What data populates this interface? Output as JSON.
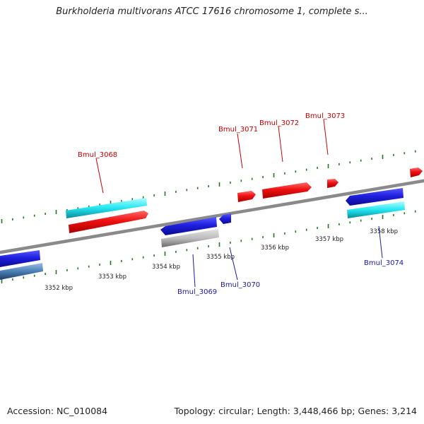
{
  "title": "Burkholderia multivorans ATCC 17616 chromosome 1, complete s...",
  "accession": "Accession: NC_010084",
  "summary": "Topology: circular; Length: 3,448,466 bp; Genes: 3,214",
  "colors": {
    "backbone": "#8a8a8a",
    "tick": "#1f7a1f",
    "forward_gene": "#ee1111",
    "reverse_gene": "#1f1fe0",
    "forward_label": "#cc0000",
    "reverse_label": "#1a1aa0",
    "cyan_track": "#22e6f0",
    "gray_track": "#b8b8b8",
    "steel_track": "#4a7fb5"
  },
  "tick_labels": [
    "3352 kbp",
    "3353 kbp",
    "3354 kbp",
    "3355 kbp",
    "3356 kbp",
    "3357 kbp",
    "3358 kbp"
  ],
  "forward_genes": [
    {
      "label": "Bmul_3068"
    },
    {
      "label": "Bmul_3071"
    },
    {
      "label": "Bmul_3072"
    },
    {
      "label": "Bmul_3073"
    }
  ],
  "reverse_genes": [
    {
      "label": "Bmul_3069"
    },
    {
      "label": "Bmul_3070"
    },
    {
      "label": "Bmul_3074"
    }
  ]
}
